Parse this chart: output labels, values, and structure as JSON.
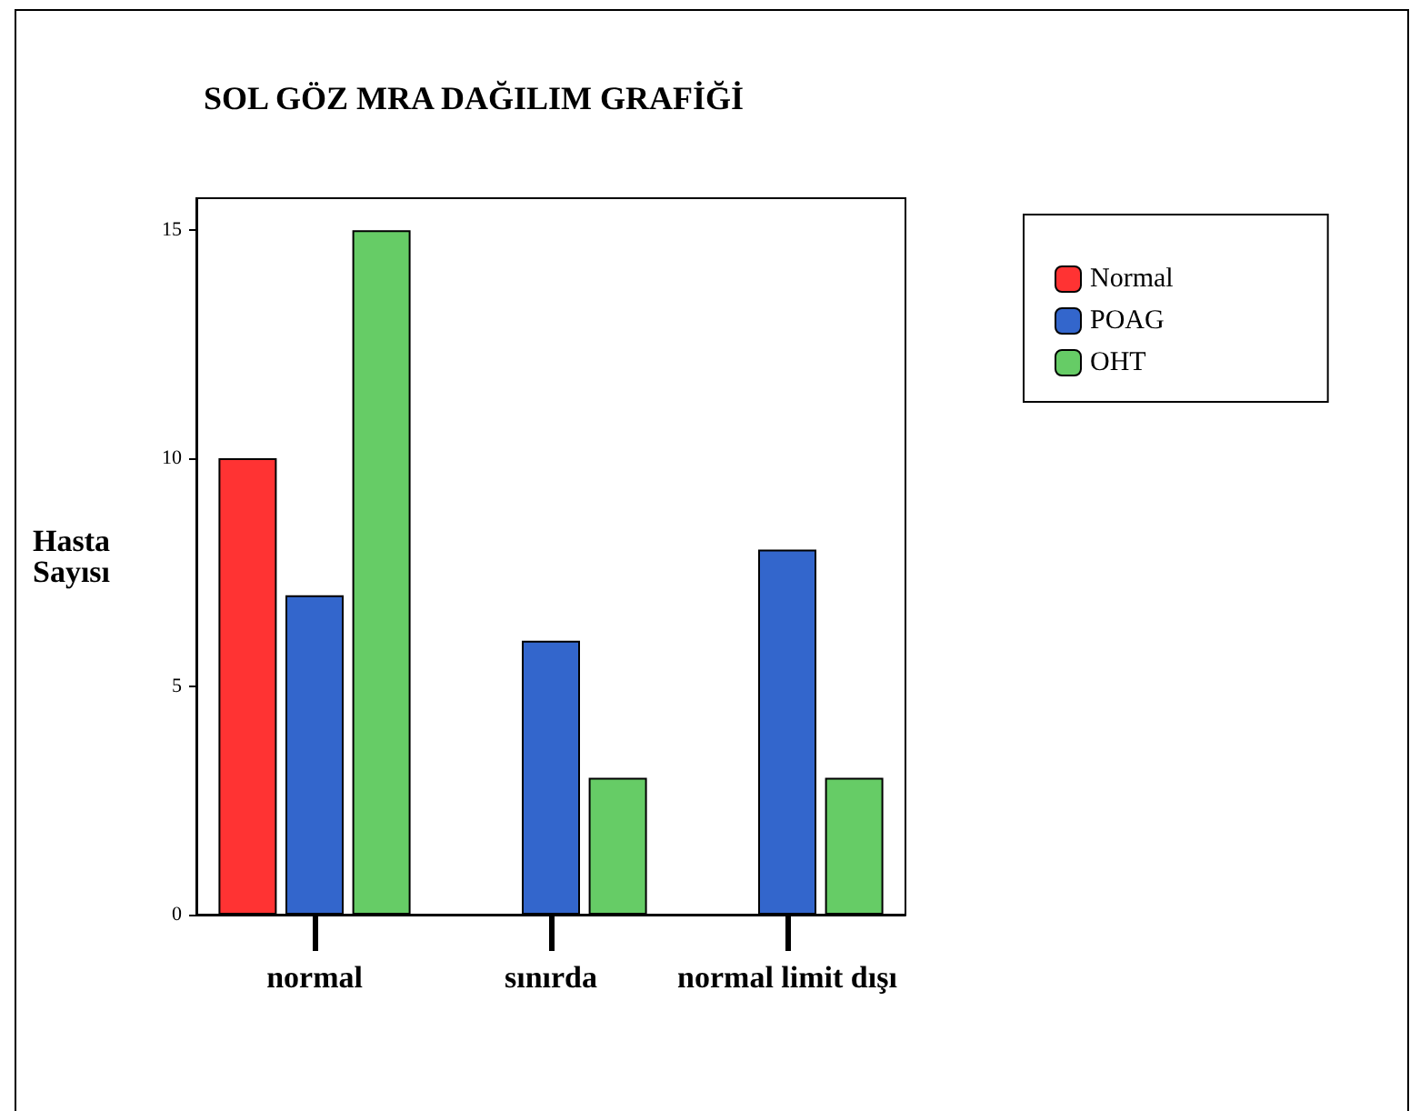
{
  "chart_data": {
    "type": "bar",
    "title": "SOL GÖZ MRA DAĞILIM GRAFİĞİ",
    "ylabel": "Hasta\nSayısı",
    "categories": [
      "normal",
      "sınırda",
      "normal limit dışı"
    ],
    "series": [
      {
        "name": "Normal",
        "color": "#ff3333",
        "values": [
          10,
          null,
          null
        ]
      },
      {
        "name": "POAG",
        "color": "#3366cc",
        "values": [
          7,
          6,
          8
        ]
      },
      {
        "name": "OHT",
        "color": "#66cc66",
        "values": [
          15,
          3,
          3
        ]
      }
    ],
    "ylim": [
      0,
      15.7
    ],
    "yticks": [
      0,
      5,
      10,
      15
    ],
    "legend": "top right"
  }
}
